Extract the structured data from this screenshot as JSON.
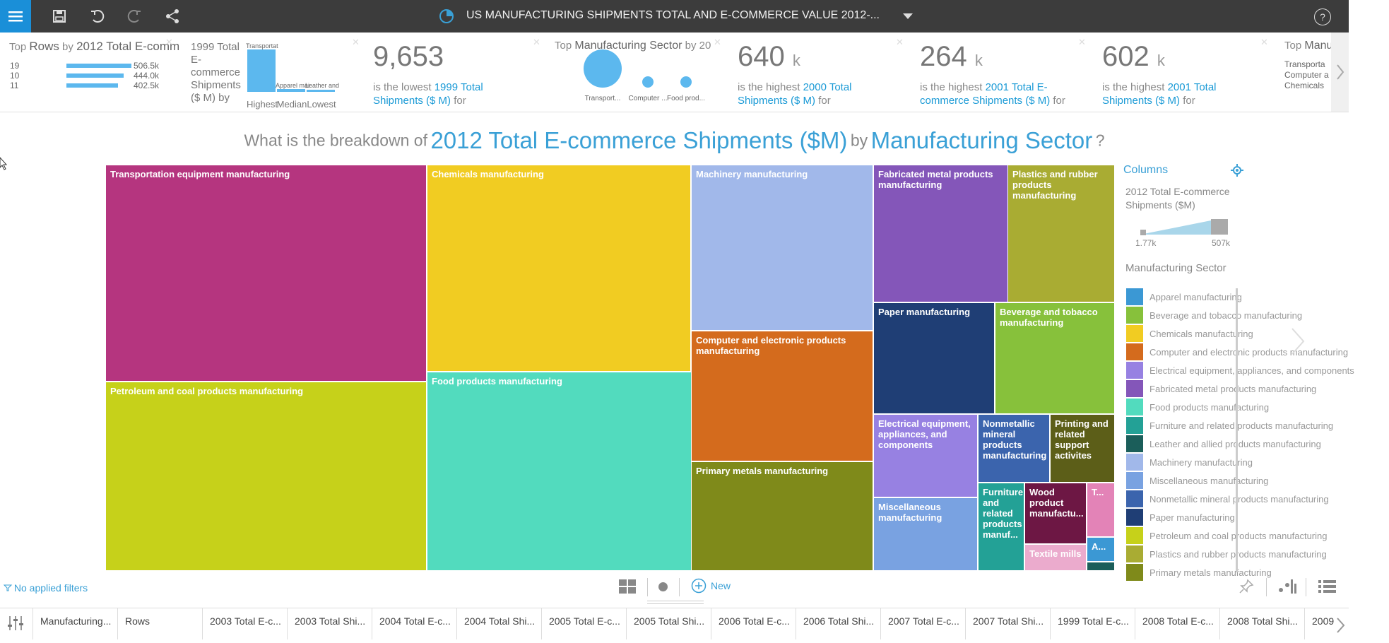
{
  "topbar": {
    "title": "US MANUFACTURING SHIPMENTS TOTAL AND E-COMMERCE VALUE 2012-...",
    "help": "?"
  },
  "cards": {
    "top_rows": {
      "title_a": "Top",
      "title_b": "Rows",
      "title_c": "by",
      "title_d": "2012 Total E-comm",
      "rows": [
        {
          "label": "19",
          "value": "506.5k",
          "fill": 1.0
        },
        {
          "label": "10",
          "value": "444.0k",
          "fill": 0.88
        },
        {
          "label": "11",
          "value": "402.5k",
          "fill": 0.79
        }
      ]
    },
    "minmax": {
      "title": "1999 Total E-commerce Shipments ($ M) by",
      "bar_labels": [
        "Transportat",
        "Apparel mai",
        "Leather and"
      ],
      "bar_fills": [
        1.0,
        0.06,
        0.04
      ],
      "axis": [
        "Highest",
        "Median",
        "Lowest"
      ]
    },
    "lowest": {
      "number": "9,653",
      "unit": "",
      "text": "is the lowest",
      "link": "1999 Total Shipments ($ M)",
      "tail": "for"
    },
    "top_sector": {
      "title_a": "Top",
      "title_b": "Manufacturing Sector",
      "title_c": "by 20",
      "bubbles": [
        "Transport...",
        "Computer ...",
        "Food prod..."
      ],
      "bubble_sizes": [
        1.0,
        0.3,
        0.3
      ]
    },
    "high1": {
      "number": "640",
      "unit": "k",
      "text": "is the highest",
      "link": "2000 Total Shipments ($ M)",
      "tail": "for"
    },
    "high2": {
      "number": "264",
      "unit": "k",
      "text": "is the highest",
      "link": "2001 Total E-commerce Shipments ($ M)",
      "tail": "for"
    },
    "high3": {
      "number": "602",
      "unit": "k",
      "text": "is the highest",
      "link": "2001 Total Shipments ($ M)",
      "tail": "for"
    },
    "top_manu": {
      "title_a": "Top",
      "title_b": "Manu",
      "items": [
        "Transporta",
        "Computer a",
        "Chemicals"
      ]
    }
  },
  "question": {
    "part1": "What is the breakdown of",
    "measure": "2012 Total E-commerce Shipments ($M)",
    "part2": "by",
    "dimension": "Manufacturing Sector",
    "mark": "?"
  },
  "treemap": {
    "tiles": [
      {
        "label": "Transportation equipment manufacturing",
        "color": "#b5357f"
      },
      {
        "label": "Petroleum and coal products manufacturing",
        "color": "#c6d11a"
      },
      {
        "label": "Chemicals manufacturing",
        "color": "#f1cc22"
      },
      {
        "label": "Food products manufacturing",
        "color": "#52dbbe"
      },
      {
        "label": "Machinery manufacturing",
        "color": "#a1b8ea"
      },
      {
        "label": "Computer and electronic products manufacturing",
        "color": "#d46b1d"
      },
      {
        "label": "Primary metals manufacturing",
        "color": "#7f8a1a"
      },
      {
        "label": "Fabricated metal products manufacturing",
        "color": "#8456b9"
      },
      {
        "label": "Plastics and rubber products manufacturing",
        "color": "#a9ac33"
      },
      {
        "label": "Paper manufacturing",
        "color": "#1f3e75"
      },
      {
        "label": "Beverage and tobacco manufacturing",
        "color": "#87c13b"
      },
      {
        "label": "Electrical equipment, appliances, and components",
        "color": "#9781e2"
      },
      {
        "label": "Miscellaneous manufacturing",
        "color": "#79a2e1"
      },
      {
        "label": "Nonmetallic mineral products manufacturing",
        "color": "#3b64ad"
      },
      {
        "label": "Printing and related support activites",
        "color": "#5c5e18"
      },
      {
        "label": "Furniture and related products manuf...",
        "color": "#23a196"
      },
      {
        "label": "Wood product manufactu...",
        "color": "#6d1744"
      },
      {
        "label": "T...",
        "color": "#e383b7"
      },
      {
        "label": "Textile mills",
        "color": "#ebabcd"
      },
      {
        "label": "A...",
        "color": "#3b98d4"
      },
      {
        "label": "",
        "color": "#1b5e5a"
      }
    ]
  },
  "columns_panel": {
    "header": "Columns",
    "size_title": "2012 Total E-commerce Shipments ($M)",
    "size_min": "1.77k",
    "size_max": "507k",
    "color_title": "Manufacturing Sector",
    "legend": [
      {
        "label": "Apparel manufacturing",
        "color": "#3b98d4"
      },
      {
        "label": "Beverage and tobacco manufacturing",
        "color": "#87c13b"
      },
      {
        "label": "Chemicals manufacturing",
        "color": "#f1cc22"
      },
      {
        "label": "Computer and electronic products manufacturing",
        "color": "#d46b1d"
      },
      {
        "label": "Electrical equipment, appliances, and components",
        "color": "#9781e2"
      },
      {
        "label": "Fabricated metal products manufacturing",
        "color": "#8456b9"
      },
      {
        "label": "Food products manufacturing",
        "color": "#52dbbe"
      },
      {
        "label": "Furniture and related products manufacturing",
        "color": "#23a196"
      },
      {
        "label": "Leather and allied products manufacturing",
        "color": "#1b5e5a"
      },
      {
        "label": "Machinery manufacturing",
        "color": "#a1b8ea"
      },
      {
        "label": "Miscellaneous manufacturing",
        "color": "#79a2e1"
      },
      {
        "label": "Nonmetallic mineral products manufacturing",
        "color": "#3b64ad"
      },
      {
        "label": "Paper manufacturing",
        "color": "#1f3e75"
      },
      {
        "label": "Petroleum and coal products manufacturing",
        "color": "#c6d11a"
      },
      {
        "label": "Plastics and rubber products manufacturing",
        "color": "#a9ac33"
      },
      {
        "label": "Primary metals manufacturing",
        "color": "#7f8a1a"
      }
    ]
  },
  "footer": {
    "filters": "No applied filters",
    "new_label": "New"
  },
  "column_tabs": [
    "Manufacturing...",
    "Rows",
    "2003 Total E-c...",
    "2003 Total Shi...",
    "2004 Total E-c...",
    "2004 Total Shi...",
    "2005 Total E-c...",
    "2005 Total Shi...",
    "2006 Total E-c...",
    "2006 Total Shi...",
    "2007 Total E-c...",
    "2007 Total Shi...",
    "1999 Total E-c...",
    "2008 Total E-c...",
    "2008 Total Shi...",
    "2009"
  ]
}
